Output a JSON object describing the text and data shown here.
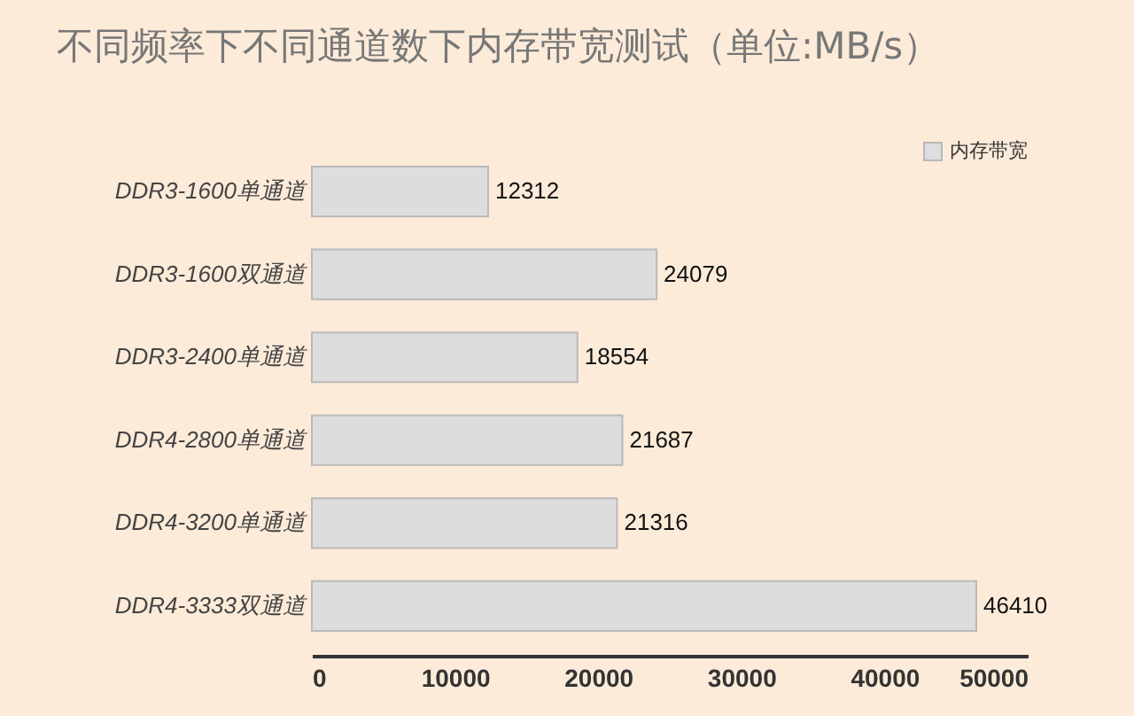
{
  "chart_data": {
    "type": "bar",
    "orientation": "horizontal",
    "title": "不同频率下不同通道数下内存带宽测试（单位:MB/s）",
    "categories": [
      "DDR3-1600单通道",
      "DDR3-1600双通道",
      "DDR3-2400单通道",
      "DDR4-2800单通道",
      "DDR4-3200单通道",
      "DDR4-3333双通道"
    ],
    "series": [
      {
        "name": "内存带宽",
        "color": "#dddddd",
        "values": [
          12312,
          24079,
          18554,
          21687,
          21316,
          46410
        ]
      }
    ],
    "xlim": [
      0,
      50000
    ],
    "xticks": [
      0,
      10000,
      20000,
      30000,
      40000,
      50000
    ],
    "data_labels": true,
    "legend": "top right",
    "grid": false
  }
}
